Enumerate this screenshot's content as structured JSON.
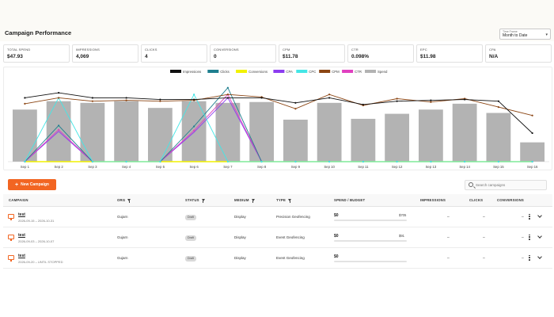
{
  "header": {
    "title": "Campaign Performance",
    "time_frame": {
      "label": "Time Frame",
      "value": "Month to Date"
    }
  },
  "metrics": [
    {
      "label": "TOTAL SPEND",
      "value": "$47.93"
    },
    {
      "label": "IMPRESSIONS",
      "value": "4,069"
    },
    {
      "label": "CLICKS",
      "value": "4"
    },
    {
      "label": "CONVERSIONS",
      "value": "0"
    },
    {
      "label": "CPM",
      "value": "$11.78"
    },
    {
      "label": "CTR",
      "value": "0.098%"
    },
    {
      "label": "EPC",
      "value": "$11.98"
    },
    {
      "label": "CPA",
      "value": "N/A"
    }
  ],
  "chart_data": {
    "type": "bar",
    "categories": [
      "Sep 1",
      "Sep 2",
      "Sep 3",
      "Sep 4",
      "Sep 5",
      "Sep 6",
      "Sep 7",
      "Sep 8",
      "Sep 9",
      "Sep 10",
      "Sep 11",
      "Sep 12",
      "Sep 13",
      "Sep 14",
      "Sep 15",
      "Sep 16"
    ],
    "legend_position": "top",
    "grid": false,
    "legend": [
      {
        "name": "Impressions",
        "color": "#111111"
      },
      {
        "name": "Clicks",
        "color": "#1f7f8f"
      },
      {
        "name": "Conversions",
        "color": "#f2f200"
      },
      {
        "name": "CPA",
        "color": "#8c3cf0"
      },
      {
        "name": "CPC",
        "color": "#44e6e6"
      },
      {
        "name": "CPM",
        "color": "#8b4513"
      },
      {
        "name": "CTR",
        "color": "#e040c0"
      },
      {
        "name": "Spend",
        "color": "#b3b3b3"
      }
    ],
    "bar_series": {
      "name": "Spend",
      "values": [
        0.62,
        0.72,
        0.7,
        0.72,
        0.64,
        0.72,
        0.7,
        0.71,
        0.5,
        0.7,
        0.51,
        0.57,
        0.62,
        0.69,
        0.58,
        0.23
      ],
      "ylim": [
        0,
        1
      ]
    },
    "line_series": [
      {
        "name": "Impressions",
        "color": "#111111",
        "marker": true,
        "values": [
          0.76,
          0.82,
          0.76,
          0.76,
          0.74,
          0.74,
          0.76,
          0.76,
          0.7,
          0.76,
          0.68,
          0.72,
          0.73,
          0.74,
          0.72,
          0.34
        ]
      },
      {
        "name": "CPM",
        "color": "#8b4513",
        "marker": true,
        "values": [
          0.69,
          0.76,
          0.72,
          0.73,
          0.72,
          0.73,
          0.8,
          0.77,
          0.63,
          0.8,
          0.67,
          0.75,
          0.71,
          0.75,
          0.65,
          0.55
        ]
      },
      {
        "name": "CPC",
        "color": "#44e6e6",
        "marker": true,
        "values": [
          0,
          0.76,
          0,
          0,
          0,
          0.8,
          0,
          0,
          0,
          0,
          0,
          0,
          0,
          0,
          0,
          0
        ]
      },
      {
        "name": "Clicks",
        "color": "#1f7f8f",
        "marker": true,
        "values": [
          0,
          0.43,
          0,
          0,
          0,
          0.42,
          0.88,
          0,
          0,
          0,
          0,
          0,
          0,
          0,
          0,
          0
        ]
      },
      {
        "name": "CTR",
        "color": "#e040c0",
        "marker": true,
        "values": [
          0,
          0.38,
          0,
          0,
          0,
          0.37,
          0.8,
          0,
          0,
          0,
          0,
          0,
          0,
          0,
          0,
          0
        ]
      },
      {
        "name": "CPA",
        "color": "#8c3cf0",
        "marker": false,
        "values": [
          0,
          0.36,
          0,
          0,
          0,
          0.35,
          0.76,
          0,
          0,
          0,
          0,
          0,
          0,
          0,
          0,
          0
        ]
      },
      {
        "name": "Conversions",
        "color": "#f2f200",
        "marker": false,
        "values": [
          0,
          0,
          0,
          0,
          0,
          0,
          0,
          0,
          0,
          0,
          0,
          0,
          0,
          0,
          0,
          0
        ]
      }
    ],
    "ylim": [
      0,
      1
    ]
  },
  "toolbar": {
    "new_campaign_label": "New Campaign",
    "search_placeholder": "Search campaigns"
  },
  "table": {
    "columns": [
      "CAMPAIGN",
      "ORG",
      "STATUS",
      "MEDIUM",
      "TYPE",
      "SPEND / BUDGET",
      "IMPRESSIONS",
      "CLICKS",
      "CONVERSIONS"
    ],
    "rows": [
      {
        "name": "test",
        "dates": "2026-09-15 – 2026-10-31",
        "org": "Gujarn",
        "status": "Draft",
        "medium": "Display",
        "type": "Precision Geofencing",
        "spend": "$0",
        "budget": "$705",
        "progress": 0,
        "impressions": "–",
        "clicks": "–",
        "conversions": "–"
      },
      {
        "name": "test",
        "dates": "2026-09-03 – 2026-10-07",
        "org": "Gujarn",
        "status": "Draft",
        "medium": "Display",
        "type": "Event Geofencing",
        "spend": "$0",
        "budget": "$91",
        "progress": 0,
        "impressions": "–",
        "clicks": "–",
        "conversions": "–"
      },
      {
        "name": "test",
        "dates": "2026-09-20 – UNTIL STOPPED",
        "org": "Gujarn",
        "status": "Draft",
        "medium": "Display",
        "type": "Event Geofencing",
        "spend": "$0",
        "budget": "",
        "progress": 0,
        "impressions": "–",
        "clicks": "–",
        "conversions": "–"
      }
    ]
  }
}
